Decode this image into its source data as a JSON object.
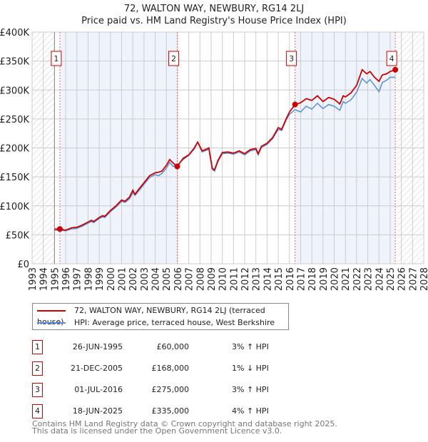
{
  "title": "72, WALTON WAY, NEWBURY, RG14 2LJ",
  "subtitle": "Price paid vs. HM Land Registry's House Price Index (HPI)",
  "chart_data": {
    "type": "line",
    "title": "72, WALTON WAY, NEWBURY, RG14 2LJ — Price paid vs. HM Land Registry's House Price Index (HPI)",
    "xlim": [
      1993,
      2028
    ],
    "ylim": [
      0,
      400000
    ],
    "y_ticks": [
      0,
      50000,
      100000,
      150000,
      200000,
      250000,
      300000,
      350000,
      400000
    ],
    "y_tick_labels": [
      "£0",
      "£50K",
      "£100K",
      "£150K",
      "£200K",
      "£250K",
      "£300K",
      "£350K",
      "£400K"
    ],
    "x_tick_labels": [
      "1993",
      "1994",
      "1995",
      "1996",
      "1997",
      "1998",
      "1999",
      "2000",
      "2001",
      "2002",
      "2003",
      "2004",
      "2005",
      "2006",
      "2007",
      "2008",
      "2009",
      "2010",
      "2011",
      "2012",
      "2013",
      "2014",
      "2015",
      "2016",
      "2017",
      "2018",
      "2019",
      "2020",
      "2021",
      "2022",
      "2023",
      "2024",
      "2025",
      "2026",
      "2027",
      "2028"
    ],
    "grid": true,
    "legend_placement": "below",
    "colors": {
      "price": "#cc0000",
      "hpi": "#5b8fd4",
      "shade": "#eef3fc"
    },
    "series": [
      {
        "name": "72, WALTON WAY, NEWBURY, RG14 2LJ (terraced house)",
        "x": [
          1995.0,
          1995.48,
          1996.0,
          1996.5,
          1997.0,
          1997.5,
          1998.0,
          1998.3,
          1998.5,
          1999.0,
          1999.3,
          1999.5,
          2000.0,
          2000.5,
          2001.0,
          2001.3,
          2001.7,
          2002.0,
          2002.2,
          2002.5,
          2003.0,
          2003.5,
          2004.0,
          2004.3,
          2004.6,
          2005.0,
          2005.3,
          2005.6,
          2005.97,
          2006.5,
          2007.0,
          2007.5,
          2007.8,
          2008.2,
          2008.6,
          2008.8,
          2009.1,
          2009.3,
          2009.6,
          2010.0,
          2010.5,
          2011.0,
          2011.5,
          2012.0,
          2012.5,
          2013.0,
          2013.2,
          2013.5,
          2014.0,
          2014.5,
          2015.0,
          2015.3,
          2015.7,
          2016.0,
          2016.5,
          2017.0,
          2017.5,
          2018.0,
          2018.5,
          2019.0,
          2019.5,
          2020.0,
          2020.5,
          2020.8,
          2021.0,
          2021.5,
          2022.0,
          2022.5,
          2022.9,
          2023.2,
          2023.6,
          2024.0,
          2024.3,
          2024.7,
          2025.0,
          2025.46
        ],
        "y": [
          60000,
          60000,
          58000,
          62000,
          63000,
          67000,
          72000,
          75000,
          73000,
          80000,
          83000,
          82000,
          92000,
          100000,
          110000,
          108000,
          115000,
          127000,
          120000,
          128000,
          140000,
          152000,
          157000,
          158000,
          160000,
          170000,
          180000,
          174000,
          168000,
          182000,
          188000,
          200000,
          210000,
          195000,
          198000,
          200000,
          165000,
          162000,
          178000,
          192000,
          193000,
          191000,
          195000,
          190000,
          197000,
          199000,
          190000,
          203000,
          208000,
          218000,
          235000,
          232000,
          250000,
          262000,
          275000,
          278000,
          285000,
          282000,
          290000,
          280000,
          287000,
          284000,
          276000,
          290000,
          288000,
          295000,
          308000,
          335000,
          328000,
          332000,
          322000,
          315000,
          326000,
          328000,
          332000,
          335000
        ]
      },
      {
        "name": "HPI: Average price, terraced house, West Berkshire",
        "x": [
          1995.0,
          1995.48,
          1996.0,
          1996.5,
          1997.0,
          1997.5,
          1998.0,
          1998.3,
          1998.5,
          1999.0,
          1999.3,
          1999.5,
          2000.0,
          2000.5,
          2001.0,
          2001.3,
          2001.7,
          2002.0,
          2002.2,
          2002.5,
          2003.0,
          2003.5,
          2004.0,
          2004.3,
          2004.6,
          2005.0,
          2005.3,
          2005.6,
          2005.97,
          2006.5,
          2007.0,
          2007.5,
          2007.8,
          2008.2,
          2008.6,
          2008.8,
          2009.1,
          2009.3,
          2009.6,
          2010.0,
          2010.5,
          2011.0,
          2011.5,
          2012.0,
          2012.5,
          2013.0,
          2013.2,
          2013.5,
          2014.0,
          2014.5,
          2015.0,
          2015.3,
          2015.7,
          2016.0,
          2016.5,
          2017.0,
          2017.5,
          2018.0,
          2018.5,
          2019.0,
          2019.5,
          2020.0,
          2020.5,
          2020.8,
          2021.0,
          2021.5,
          2022.0,
          2022.5,
          2022.9,
          2023.2,
          2023.6,
          2024.0,
          2024.3,
          2024.7,
          2025.0,
          2025.46
        ],
        "y": [
          58000,
          58000,
          57000,
          60000,
          61000,
          65000,
          70000,
          73000,
          71000,
          78000,
          81000,
          80000,
          90000,
          98000,
          108000,
          106000,
          112000,
          123000,
          118000,
          125000,
          137000,
          149000,
          154000,
          152000,
          156000,
          165000,
          175000,
          168000,
          170000,
          180000,
          187000,
          198000,
          210000,
          193000,
          196000,
          198000,
          163000,
          160000,
          176000,
          190000,
          191000,
          189000,
          193000,
          188000,
          195000,
          197000,
          188000,
          201000,
          206000,
          216000,
          232000,
          230000,
          248000,
          258000,
          266000,
          262000,
          272000,
          267000,
          277000,
          268000,
          275000,
          272000,
          265000,
          280000,
          277000,
          283000,
          296000,
          320000,
          312000,
          318000,
          308000,
          297000,
          313000,
          317000,
          322000,
          322000
        ]
      }
    ],
    "sales": [
      {
        "n": "1",
        "x": 1995.48,
        "y": 60000
      },
      {
        "n": "2",
        "x": 2005.97,
        "y": 168000
      },
      {
        "n": "3",
        "x": 2016.5,
        "y": 275000
      },
      {
        "n": "4",
        "x": 2025.46,
        "y": 335000
      }
    ]
  },
  "legend": {
    "price_label": "72, WALTON WAY, NEWBURY, RG14 2LJ (terraced house)",
    "hpi_label": "HPI: Average price, terraced house, West Berkshire"
  },
  "transactions": [
    {
      "n": "1",
      "date": "26-JUN-1995",
      "price": "£60,000",
      "hpi": "3% ↑ HPI"
    },
    {
      "n": "2",
      "date": "21-DEC-2005",
      "price": "£168,000",
      "hpi": "1% ↓ HPI"
    },
    {
      "n": "3",
      "date": "01-JUL-2016",
      "price": "£275,000",
      "hpi": "3% ↑ HPI"
    },
    {
      "n": "4",
      "date": "18-JUN-2025",
      "price": "£335,000",
      "hpi": "4% ↑ HPI"
    }
  ],
  "footer": {
    "line1": "Contains HM Land Registry data © Crown copyright and database right 2025.",
    "line2": "This data is licensed under the Open Government Licence v3.0."
  }
}
